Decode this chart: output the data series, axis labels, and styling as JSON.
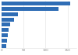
{
  "values": [
    155,
    130,
    38,
    28,
    20,
    16,
    14,
    12,
    10
  ],
  "bar_color": "#2F6DB5",
  "background_color": "#ffffff",
  "xlim": [
    0,
    170
  ],
  "bar_height": 0.75,
  "grid_color": "#e0e0e0",
  "tick_color": "#888888",
  "tick_fontsize": 3.0,
  "xticks": [
    0,
    50,
    100,
    150
  ]
}
